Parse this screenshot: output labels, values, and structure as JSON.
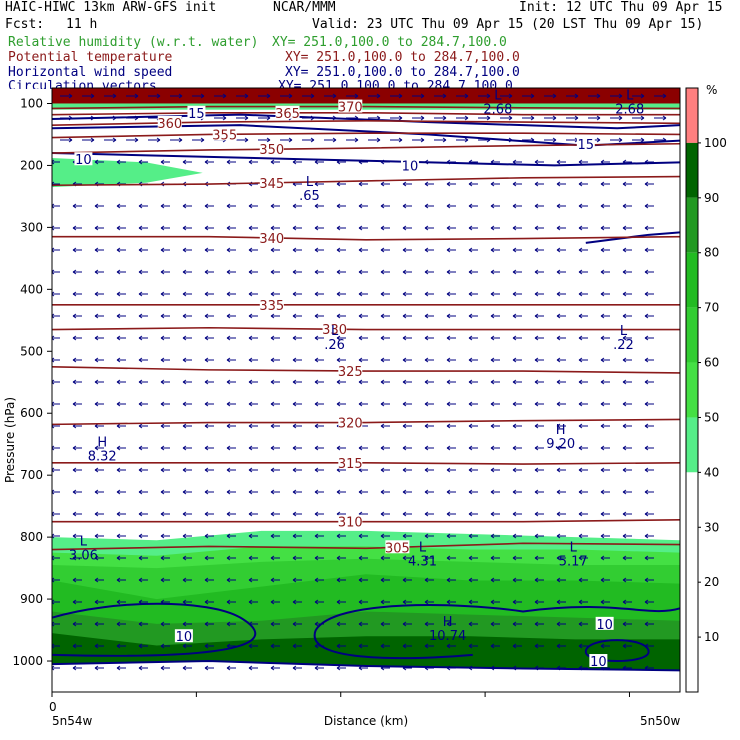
{
  "header": {
    "title": "HAIC-HIWC 13km ARW-GFS init",
    "org": "NCAR/MMM",
    "init": "Init: 12 UTC Thu 09 Apr 15",
    "fcst_label": "Fcst:",
    "fcst_value": "11 h",
    "valid": "Valid: 23 UTC Thu 09 Apr 15 (20 LST Thu 09 Apr 15)"
  },
  "fields": [
    {
      "name": "Relative humidity (w.r.t. water)",
      "xy": "XY= 251.0,100.0 to 284.7,100.0",
      "color": "#2e9e2e"
    },
    {
      "name": "Potential temperature",
      "xy": "XY= 251.0,100.0 to 284.7,100.0",
      "color": "#8b1a1a"
    },
    {
      "name": "Horizontal wind speed",
      "xy": "XY= 251.0,100.0 to 284.7,100.0",
      "color": "#000080"
    },
    {
      "name": "Circulation vectors",
      "xy": "XY= 251.0,100.0 to 284.7,100.0",
      "color": "#000080"
    }
  ],
  "axes": {
    "ylabel": "Pressure (hPa)",
    "xlabel": "Distance (km)",
    "x_origin_label": "0",
    "x_left_label": "5n54w",
    "x_right_label": "5n50w"
  },
  "colorbar": {
    "unit": "%",
    "ticks": [
      "100",
      "90",
      "80",
      "70",
      "60",
      "50",
      "40",
      "30",
      "20",
      "10"
    ],
    "colors": [
      "#ff7f7f",
      "#006400",
      "#229922",
      "#22bb22",
      "#32cd32",
      "#44e044",
      "#55ee88",
      "#ffffff",
      "#ffffff",
      "#ffffff",
      "#ffffff"
    ]
  },
  "chart_data": {
    "type": "cross-section",
    "y_axis": {
      "label": "Pressure (hPa)",
      "ticks": [
        100,
        200,
        300,
        400,
        500,
        600,
        700,
        800,
        900,
        1000
      ],
      "range": [
        75,
        1050
      ],
      "inverted": true
    },
    "x_axis": {
      "label": "Distance (km)",
      "origin": "0",
      "left": "5n54w",
      "right": "5n50w"
    },
    "theta_contours": [
      {
        "label": "305",
        "levels": [
          820,
          815,
          818,
          810,
          812
        ]
      },
      {
        "label": "310",
        "levels": [
          775,
          775,
          775,
          775,
          772
        ]
      },
      {
        "label": "315",
        "levels": [
          680,
          680,
          680,
          682,
          680
        ]
      },
      {
        "label": "320",
        "levels": [
          618,
          615,
          615,
          612,
          610
        ]
      },
      {
        "label": "325",
        "levels": [
          525,
          530,
          532,
          532,
          535
        ]
      },
      {
        "label": "330",
        "levels": [
          465,
          462,
          465,
          465,
          465
        ]
      },
      {
        "label": "335",
        "levels": [
          425,
          425,
          425,
          425,
          425
        ]
      },
      {
        "label": "340",
        "levels": [
          315,
          315,
          320,
          318,
          315
        ]
      },
      {
        "label": "345",
        "levels": [
          232,
          230,
          225,
          220,
          218
        ]
      },
      {
        "label": "350",
        "levels": [
          180,
          175,
          172,
          168,
          165
        ]
      },
      {
        "label": "355",
        "levels": [
          155,
          150,
          148,
          148,
          150
        ]
      },
      {
        "label": "360",
        "levels": [
          135,
          130,
          128,
          130,
          132
        ]
      },
      {
        "label": "365",
        "levels": [
          118,
          115,
          115,
          118,
          118
        ]
      },
      {
        "label": "370",
        "levels": [
          108,
          105,
          105,
          107,
          108
        ]
      }
    ],
    "theta_label_positions": [
      {
        "label": "305",
        "i": 2.2
      },
      {
        "label": "310",
        "i": 1.9
      },
      {
        "label": "315",
        "i": 1.9
      },
      {
        "label": "320",
        "i": 1.9
      },
      {
        "label": "325",
        "i": 1.9
      },
      {
        "label": "330",
        "i": 1.8
      },
      {
        "label": "335",
        "i": 1.4
      },
      {
        "label": "340",
        "i": 1.4
      },
      {
        "label": "345",
        "i": 1.4
      },
      {
        "label": "350",
        "i": 1.4
      },
      {
        "label": "355",
        "i": 1.1
      },
      {
        "label": "360",
        "i": 0.75
      },
      {
        "label": "365",
        "i": 1.5
      },
      {
        "label": "370",
        "i": 1.9
      }
    ],
    "wind_speed_labels": [
      {
        "label": "10",
        "x": 0.05,
        "p": 190
      },
      {
        "label": "10",
        "x": 0.57,
        "p": 200
      },
      {
        "label": "15",
        "x": 0.85,
        "p": 165
      },
      {
        "label": "15",
        "x": 0.23,
        "p": 115
      },
      {
        "label": "10",
        "x": 0.21,
        "p": 960
      },
      {
        "label": "10",
        "x": 0.88,
        "p": 940
      },
      {
        "label": "10",
        "x": 0.87,
        "p": 1000
      }
    ],
    "extrema": [
      {
        "type": "L",
        "value": ".65",
        "x": 0.41,
        "p": 240
      },
      {
        "type": "L",
        "value": ".26",
        "x": 0.45,
        "p": 480
      },
      {
        "type": "L",
        "value": ".22",
        "x": 0.91,
        "p": 480
      },
      {
        "type": "H",
        "value": "8.32",
        "x": 0.08,
        "p": 660
      },
      {
        "type": "H",
        "value": "9.20",
        "x": 0.81,
        "p": 640
      },
      {
        "type": "L",
        "value": "3.06",
        "x": 0.05,
        "p": 820
      },
      {
        "type": "L",
        "value": "4.31",
        "x": 0.59,
        "p": 830
      },
      {
        "type": "L",
        "value": "5.17",
        "x": 0.83,
        "p": 830
      },
      {
        "type": "H",
        "value": "10.74",
        "x": 0.63,
        "p": 950
      },
      {
        "type": "L",
        "value": "2.68",
        "x": 0.71,
        "p": 100
      },
      {
        "type": "L",
        "value": "2.68",
        "x": 0.92,
        "p": 100
      }
    ],
    "rh_regions": [
      {
        "band": "50-60",
        "color": "#55ee88",
        "note": "upper-left 190-230 hPa"
      },
      {
        "band": "50-60",
        "color": "#55ee88",
        "note": "near 95-110 hPa"
      },
      {
        "band": "60-100",
        "color": "#229922",
        "note": "boundary layer 800-1000 hPa"
      },
      {
        "band": "100",
        "color": "#8b0000",
        "note": "top 75-100 hPa"
      }
    ]
  }
}
